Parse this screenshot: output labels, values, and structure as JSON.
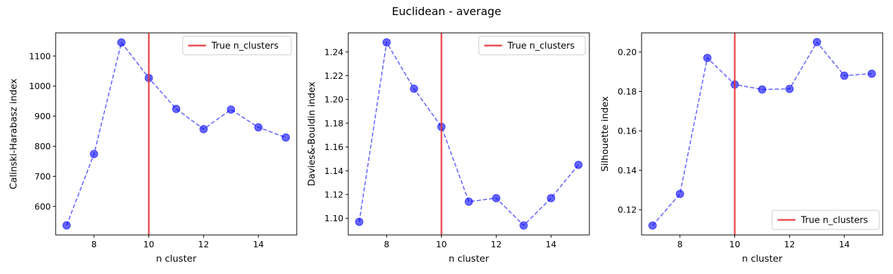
{
  "figure": {
    "title": "Euclidean - average"
  },
  "chart_data": [
    {
      "type": "line",
      "xlabel": "n cluster",
      "ylabel": "Calinski-Harabasz index",
      "x": [
        7,
        8,
        9,
        10,
        11,
        12,
        13,
        14,
        15
      ],
      "values": [
        537,
        774,
        1145,
        1027,
        924,
        857,
        922,
        863,
        829
      ],
      "xlim": [
        6.6,
        15.4
      ],
      "ylim": [
        505,
        1177
      ],
      "xticks": [
        8,
        10,
        12,
        14
      ],
      "yticks": [
        600,
        700,
        800,
        900,
        1000,
        1100
      ],
      "ytick_labels": [
        "600",
        "700",
        "800",
        "900",
        "1000",
        "1100"
      ],
      "vline": {
        "x": 10,
        "label": "True n_clusters"
      },
      "legend_position": "upper right",
      "series_color": "#0000ff",
      "vline_color": "#e8393b",
      "grid": false
    },
    {
      "type": "line",
      "xlabel": "n cluster",
      "ylabel": "Davies&-Bouldin index",
      "x": [
        7,
        8,
        9,
        10,
        11,
        12,
        13,
        14,
        15
      ],
      "values": [
        1.097,
        1.248,
        1.209,
        1.177,
        1.114,
        1.117,
        1.094,
        1.117,
        1.145
      ],
      "xlim": [
        6.6,
        15.4
      ],
      "ylim": [
        1.086,
        1.256
      ],
      "xticks": [
        8,
        10,
        12,
        14
      ],
      "yticks": [
        1.1,
        1.12,
        1.14,
        1.16,
        1.18,
        1.2,
        1.22,
        1.24
      ],
      "ytick_labels": [
        "1.10",
        "1.12",
        "1.14",
        "1.16",
        "1.18",
        "1.20",
        "1.22",
        "1.24"
      ],
      "vline": {
        "x": 10,
        "label": "True n_clusters"
      },
      "legend_position": "upper right",
      "series_color": "#0000ff",
      "vline_color": "#e8393b",
      "grid": false
    },
    {
      "type": "line",
      "xlabel": "n cluster",
      "ylabel": "Silhouette index",
      "x": [
        7,
        8,
        9,
        10,
        11,
        12,
        13,
        14,
        15
      ],
      "values": [
        0.112,
        0.128,
        0.197,
        0.1835,
        0.181,
        0.1813,
        0.205,
        0.188,
        0.189
      ],
      "xlim": [
        6.6,
        15.4
      ],
      "ylim": [
        0.1072,
        0.2097
      ],
      "xticks": [
        8,
        10,
        12,
        14
      ],
      "yticks": [
        0.12,
        0.14,
        0.16,
        0.18,
        0.2
      ],
      "ytick_labels": [
        "0.12",
        "0.14",
        "0.16",
        "0.18",
        "0.20"
      ],
      "vline": {
        "x": 10,
        "label": "True n_clusters"
      },
      "legend_position": "lower right",
      "series_color": "#0000ff",
      "vline_color": "#e8393b",
      "grid": false
    }
  ]
}
